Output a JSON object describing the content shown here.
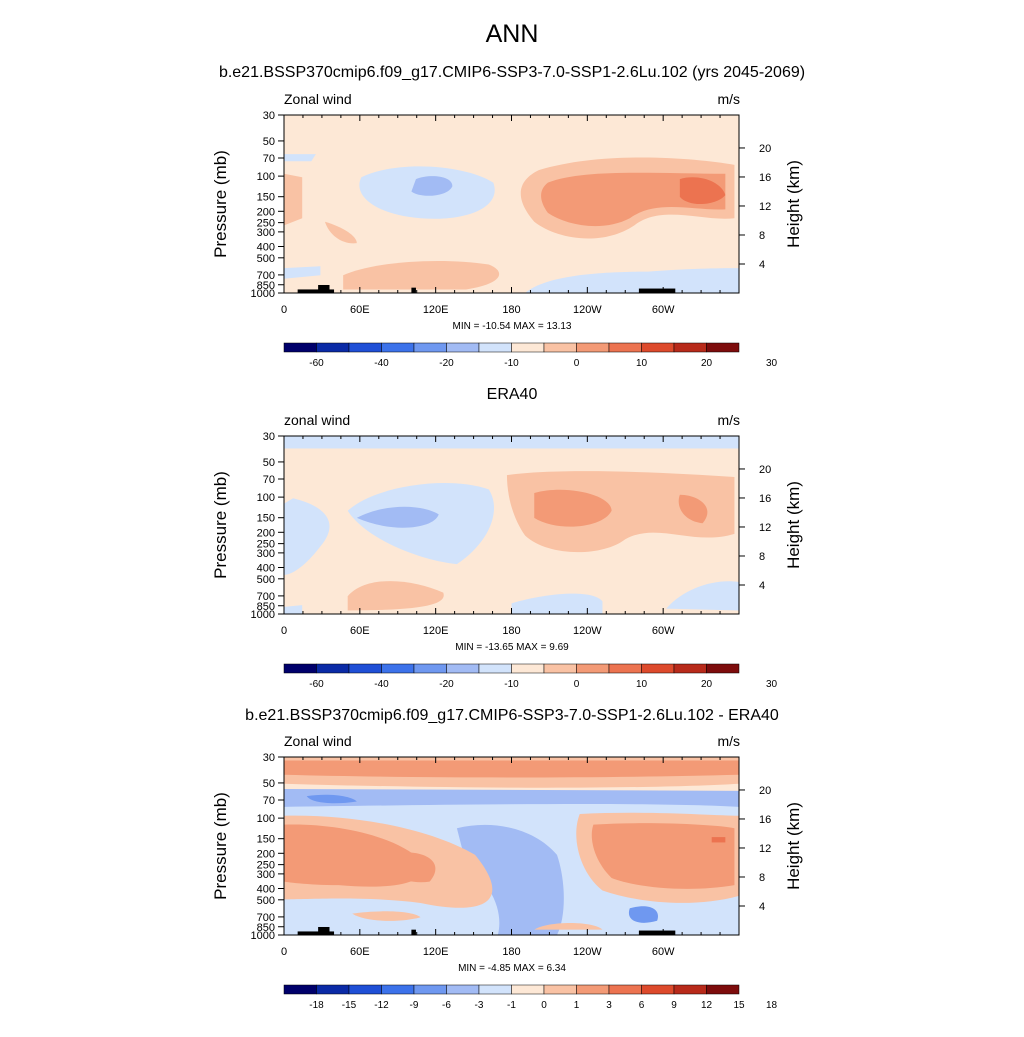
{
  "title": "ANN",
  "colors": {
    "cbar_main": [
      "#00006b",
      "#0a2aa6",
      "#1f4fd6",
      "#3c72ea",
      "#6f98f0",
      "#a2bbf4",
      "#d2e3fb",
      "#fde8d6",
      "#f9c2a4",
      "#f39a76",
      "#ec7350",
      "#dd4a2c",
      "#b82a1a",
      "#7d0c0c"
    ],
    "cbar_diff": [
      "#00006b",
      "#0a2aa6",
      "#1f4fd6",
      "#3c72ea",
      "#6f98f0",
      "#a2bbf4",
      "#d2e3fb",
      "#fde8d6",
      "#f9c2a4",
      "#f39a76",
      "#ec7350",
      "#dd4a2c",
      "#b82a1a",
      "#7d0c0c"
    ],
    "topography": "#000000"
  },
  "panels": [
    {
      "subtitle": "b.e21.BSSP370cmip6.f09_g17.CMIP6-SSP3-7.0-SSP1-2.6Lu.102 (yrs 2045-2069)",
      "left_label": "Zonal wind",
      "units": "m/s",
      "stats": "MIN = -10.54  MAX =  13.13"
    },
    {
      "subtitle": "ERA40",
      "left_label": "zonal wind",
      "units": "m/s",
      "stats": "MIN = -13.65  MAX =   9.69"
    },
    {
      "subtitle": "b.e21.BSSP370cmip6.f09_g17.CMIP6-SSP3-7.0-SSP1-2.6Lu.102 - ERA40",
      "left_label": "Zonal wind",
      "units": "m/s",
      "stats": "MIN =  -4.85  MAX =  6.34"
    }
  ],
  "chart_data": [
    {
      "type": "heatmap",
      "title": "b.e21.BSSP370cmip6.f09_g17.CMIP6-SSP3-7.0-SSP1-2.6Lu.102 (yrs 2045-2069)",
      "variable": "Zonal wind",
      "units": "m/s",
      "xlabel": "",
      "ylabel": "Pressure (mb)",
      "y2label": "Height (km)",
      "xlim": [
        0,
        360
      ],
      "ylim": [
        1000,
        30
      ],
      "x_ticks": [
        "0",
        "60E",
        "120E",
        "180",
        "120W",
        "60W"
      ],
      "y_ticks": [
        "30",
        "50",
        "70",
        "100",
        "150",
        "200",
        "250",
        "300",
        "400",
        "500",
        "700",
        "850",
        "1000"
      ],
      "y2_ticks": [
        "4",
        "8",
        "12",
        "16",
        "20"
      ],
      "colorbar": [
        "-60",
        "-40",
        "-20",
        "-10",
        "0",
        "10",
        "20",
        "30"
      ],
      "min": -10.54,
      "max": 13.13
    },
    {
      "type": "heatmap",
      "title": "ERA40",
      "variable": "zonal wind",
      "units": "m/s",
      "xlabel": "",
      "ylabel": "Pressure (mb)",
      "y2label": "Height (km)",
      "xlim": [
        0,
        360
      ],
      "ylim": [
        1000,
        30
      ],
      "x_ticks": [
        "0",
        "60E",
        "120E",
        "180",
        "120W",
        "60W"
      ],
      "y_ticks": [
        "30",
        "50",
        "70",
        "100",
        "150",
        "200",
        "250",
        "300",
        "400",
        "500",
        "700",
        "850",
        "1000"
      ],
      "y2_ticks": [
        "4",
        "8",
        "12",
        "16",
        "20"
      ],
      "colorbar": [
        "-60",
        "-40",
        "-20",
        "-10",
        "0",
        "10",
        "20",
        "30"
      ],
      "min": -13.65,
      "max": 9.69
    },
    {
      "type": "heatmap",
      "title": "b.e21.BSSP370cmip6.f09_g17.CMIP6-SSP3-7.0-SSP1-2.6Lu.102 - ERA40",
      "variable": "Zonal wind",
      "units": "m/s",
      "xlabel": "",
      "ylabel": "Pressure (mb)",
      "y2label": "Height (km)",
      "xlim": [
        0,
        360
      ],
      "ylim": [
        1000,
        30
      ],
      "x_ticks": [
        "0",
        "60E",
        "120E",
        "180",
        "120W",
        "60W"
      ],
      "y_ticks": [
        "30",
        "50",
        "70",
        "100",
        "150",
        "200",
        "250",
        "300",
        "400",
        "500",
        "700",
        "850",
        "1000"
      ],
      "y2_ticks": [
        "4",
        "8",
        "12",
        "16",
        "20"
      ],
      "colorbar": [
        "-18",
        "-15",
        "-12",
        "-9",
        "-6",
        "-3",
        "-1",
        "0",
        "1",
        "3",
        "6",
        "9",
        "12",
        "15",
        "18"
      ],
      "min": -4.85,
      "max": 6.34
    }
  ]
}
